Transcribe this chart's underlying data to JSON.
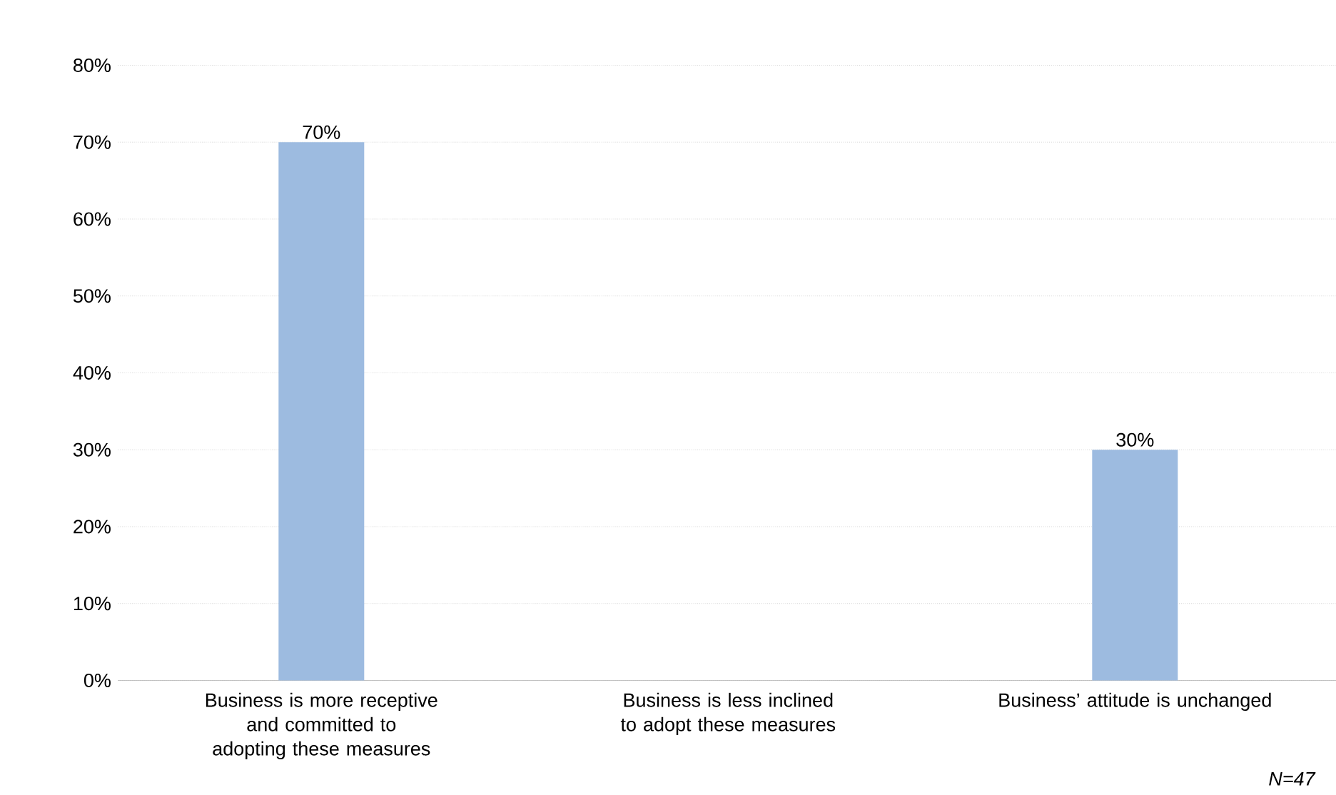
{
  "chart_data": {
    "type": "bar",
    "categories": [
      "Business is more receptive and committed to adopting these measures",
      "Business is less inclined to adopt these measures",
      "Business’ attitude is unchanged"
    ],
    "values": [
      70,
      0,
      30
    ],
    "value_labels": [
      "70%",
      null,
      "30%"
    ],
    "color": "#9dbbe0",
    "ylim": [
      0,
      80
    ],
    "yticks": [
      {
        "value": 0,
        "label": "0%"
      },
      {
        "value": 10,
        "label": "10%"
      },
      {
        "value": 20,
        "label": "20%"
      },
      {
        "value": 30,
        "label": "30%"
      },
      {
        "value": 40,
        "label": "40%"
      },
      {
        "value": 50,
        "label": "50%"
      },
      {
        "value": 60,
        "label": "60%"
      },
      {
        "value": 70,
        "label": "70%"
      },
      {
        "value": 80,
        "label": "80%"
      }
    ],
    "grid": "y",
    "annotations": [
      "N=47"
    ]
  }
}
